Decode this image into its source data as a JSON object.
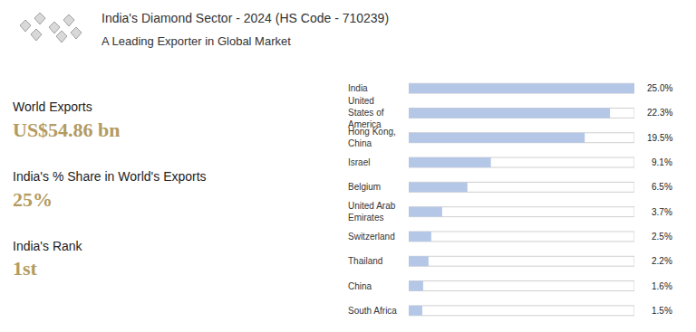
{
  "header": {
    "title": "India's Diamond Sector - 2024 (HS Code - 710239)",
    "subtitle": "A Leading Exporter in Global Market"
  },
  "stats": [
    {
      "label": "World Exports",
      "value": "US$54.86 bn"
    },
    {
      "label": "India's % Share in World's Exports",
      "value": "25%"
    },
    {
      "label": "India's Rank",
      "value": "1st"
    }
  ],
  "chart_data": {
    "type": "bar",
    "orientation": "horizontal",
    "categories": [
      "India",
      "United States of America",
      "Hong Kong, China",
      "Israel",
      "Belgium",
      "United Arab Emirates",
      "Switzerland",
      "Thailand",
      "China",
      "South Africa"
    ],
    "values": [
      25.0,
      22.3,
      19.5,
      9.1,
      6.5,
      3.7,
      2.5,
      2.2,
      1.6,
      1.5
    ],
    "value_labels": [
      "25.0%",
      "22.3%",
      "19.5%",
      "9.1%",
      "6.5%",
      "3.7%",
      "2.5%",
      "2.2%",
      "1.6%",
      "1.5%"
    ],
    "color": "#b4c7e7",
    "xlim": [
      0,
      25
    ],
    "data_labels": true,
    "tick_labels": "y",
    "grid": false
  }
}
